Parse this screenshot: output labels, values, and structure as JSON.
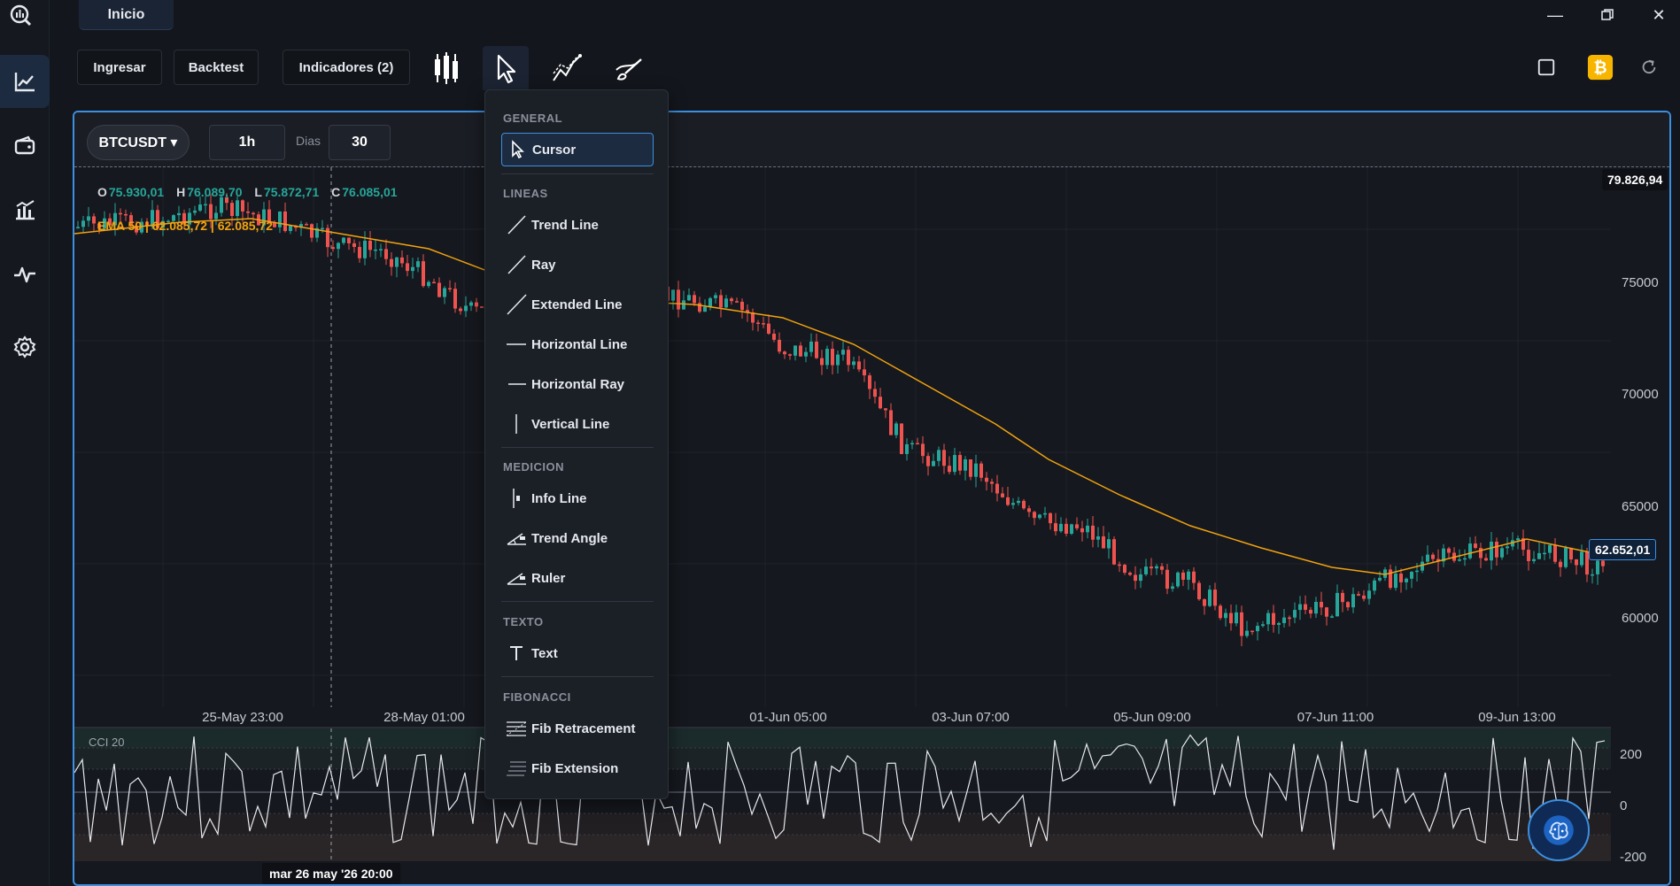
{
  "titlebar": {
    "tab": "Inicio"
  },
  "toolbar": {
    "ingresar": "Ingresar",
    "backtest": "Backtest",
    "indicadores": "Indicadores (2)"
  },
  "chart_header": {
    "symbol": "BTCUSDT ▾",
    "timeframe": "1h",
    "dias_label": "Dias",
    "dias_value": "30"
  },
  "ohlc": {
    "o_key": "O",
    "o": "75.930,01",
    "h_key": "H",
    "h": "76.089,70",
    "l_key": "L",
    "l": "75.872,71",
    "c_key": "C",
    "c": "76.085,01"
  },
  "ema_label": "EMA 50 | 62.085,72 | 62.085,72",
  "price_tags": {
    "top": "79.826,94",
    "last": "62.652,01"
  },
  "price_axis": [
    "75000",
    "70000",
    "65000",
    "60000"
  ],
  "time_axis": [
    "25-May 23:00",
    "28-May 01:00",
    "01-Jun 05:00",
    "03-Jun 07:00",
    "05-Jun 09:00",
    "07-Jun 11:00",
    "09-Jun 13:00"
  ],
  "cci": {
    "label": "CCI 20",
    "axis": [
      "200",
      "0",
      "-200"
    ]
  },
  "crosshair_time": "mar 26 may '26  20:00",
  "colors": {
    "accent": "#3d8fe0",
    "up": "#26a69a",
    "down": "#ef5350",
    "ema": "#f2a30f",
    "bitcoin": "#f7b500"
  },
  "dropdown": {
    "general": {
      "title": "GENERAL",
      "items": [
        "Cursor"
      ]
    },
    "lineas": {
      "title": "LINEAS",
      "items": [
        "Trend Line",
        "Ray",
        "Extended Line",
        "Horizontal Line",
        "Horizontal Ray",
        "Vertical Line"
      ]
    },
    "medicion": {
      "title": "MEDICION",
      "items": [
        "Info Line",
        "Trend Angle",
        "Ruler"
      ]
    },
    "texto": {
      "title": "TEXTO",
      "items": [
        "Text"
      ]
    },
    "fibonacci": {
      "title": "FIBONACCI",
      "items": [
        "Fib Retracement",
        "Fib Extension"
      ]
    }
  }
}
